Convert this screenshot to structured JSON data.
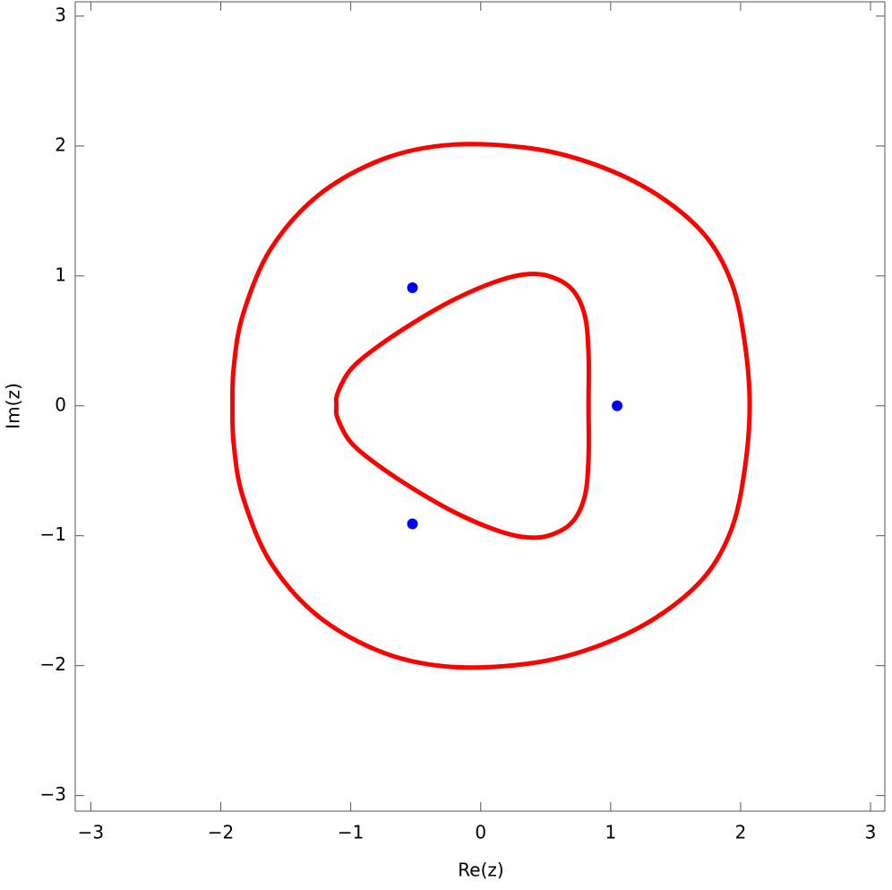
{
  "chart_data": {
    "type": "line",
    "xlabel": "Re(z)",
    "ylabel": "Im(z)",
    "xlim": [
      -3.12,
      3.11
    ],
    "ylim": [
      -3.12,
      3.11
    ],
    "xticks": [
      {
        "value": -3,
        "label": "−3"
      },
      {
        "value": -2,
        "label": "−2"
      },
      {
        "value": -1,
        "label": "−1"
      },
      0,
      1,
      2,
      3
    ],
    "yticks": [
      {
        "value": -3,
        "label": "−3"
      },
      {
        "value": -2,
        "label": "−2"
      },
      {
        "value": -1,
        "label": "−1"
      },
      0,
      1,
      2,
      3
    ],
    "series": [
      {
        "color": "#ff0000",
        "closed": true,
        "x": [
          2.07,
          2.03,
          1.93,
          1.72,
          1.35,
          0.9,
          0.4,
          -0.22,
          -0.75,
          -1.25,
          -1.62,
          -1.83,
          -1.9,
          -1.91,
          -1.9,
          -1.83,
          -1.62,
          -1.25,
          -0.75,
          -0.22,
          0.4,
          0.9,
          1.35,
          1.72,
          1.93,
          2.03
        ],
        "y": [
          0,
          0.5,
          0.95,
          1.32,
          1.63,
          1.85,
          1.98,
          2.01,
          1.9,
          1.62,
          1.2,
          0.7,
          0.3,
          0,
          -0.3,
          -0.7,
          -1.2,
          -1.62,
          -1.9,
          -2.01,
          -1.98,
          -1.85,
          -1.63,
          -1.32,
          -0.95,
          -0.5
        ]
      },
      {
        "color": "#ff0000",
        "closed": true,
        "x": [
          0.83,
          0.83,
          0.8,
          0.7,
          0.52,
          0.33,
          0.1,
          -0.2,
          -0.5,
          -0.8,
          -1.0,
          -1.1,
          -1.11,
          -1.1,
          -1.0,
          -0.8,
          -0.5,
          -0.2,
          0.1,
          0.33,
          0.52,
          0.7,
          0.8,
          0.83
        ],
        "y": [
          0,
          0.4,
          0.7,
          0.9,
          1.0,
          1.01,
          0.95,
          0.82,
          0.65,
          0.45,
          0.28,
          0.1,
          0,
          -0.1,
          -0.28,
          -0.45,
          -0.65,
          -0.82,
          -0.95,
          -1.01,
          -1.0,
          -0.9,
          -0.7,
          -0.4
        ]
      },
      {
        "color": "#0000ff",
        "marker": "dot",
        "x": [
          1.05,
          -0.525,
          -0.525
        ],
        "y": [
          0,
          0.909,
          -0.909
        ]
      }
    ]
  }
}
